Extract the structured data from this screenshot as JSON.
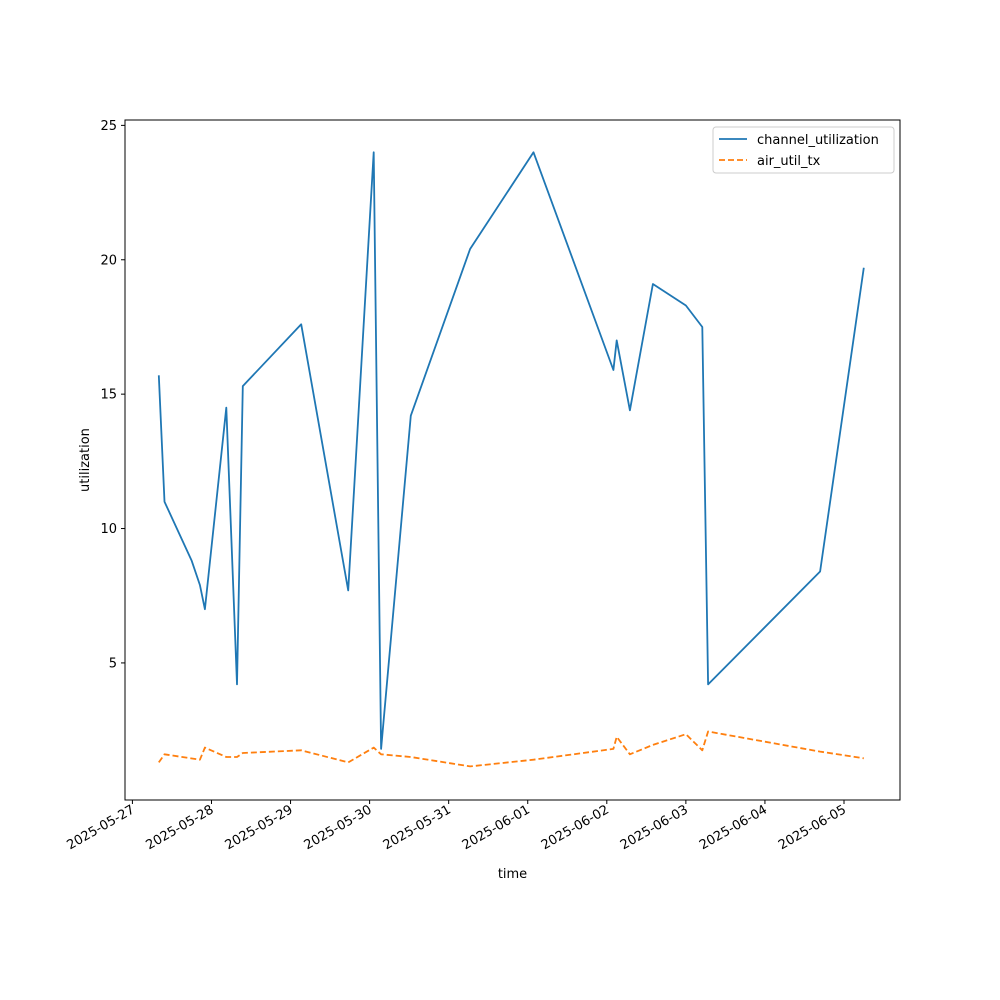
{
  "chart_data": {
    "type": "line",
    "title": "",
    "xlabel": "time",
    "ylabel": "utilization",
    "xlim": [
      "2025-05-26 21:45",
      "2025-06-05 17:00"
    ],
    "ylim": [
      -0.1,
      25.2
    ],
    "x_ticks": [
      "2025-05-27",
      "2025-05-28",
      "2025-05-29",
      "2025-05-30",
      "2025-05-31",
      "2025-06-01",
      "2025-06-02",
      "2025-06-03",
      "2025-06-04",
      "2025-06-05"
    ],
    "y_ticks": [
      5,
      10,
      15,
      20,
      25
    ],
    "grid": false,
    "legend_position": "top-right",
    "series": [
      {
        "name": "channel_utilization",
        "color": "#1f77b4",
        "style": "solid",
        "points": [
          [
            "2025-05-27 08:00",
            15.7
          ],
          [
            "2025-05-27 09:45",
            11.0
          ],
          [
            "2025-05-27 18:00",
            8.8
          ],
          [
            "2025-05-27 20:30",
            7.9
          ],
          [
            "2025-05-27 22:00",
            7.0
          ],
          [
            "2025-05-28 04:30",
            14.5
          ],
          [
            "2025-05-28 07:45",
            4.2
          ],
          [
            "2025-05-28 09:30",
            15.3
          ],
          [
            "2025-05-29 03:15",
            17.6
          ],
          [
            "2025-05-29 17:30",
            7.7
          ],
          [
            "2025-05-30 01:15",
            24.0
          ],
          [
            "2025-05-30 03:30",
            1.8
          ],
          [
            "2025-05-30 12:30",
            14.2
          ],
          [
            "2025-05-31 06:30",
            20.4
          ],
          [
            "2025-06-01 01:45",
            24.0
          ],
          [
            "2025-06-02 02:00",
            15.9
          ],
          [
            "2025-06-02 03:00",
            17.0
          ],
          [
            "2025-06-02 07:00",
            14.4
          ],
          [
            "2025-06-02 14:00",
            19.1
          ],
          [
            "2025-06-03 00:00",
            18.3
          ],
          [
            "2025-06-03 05:00",
            17.5
          ],
          [
            "2025-06-03 06:45",
            4.2
          ],
          [
            "2025-06-04 16:45",
            8.4
          ],
          [
            "2025-06-05 06:00",
            19.7
          ]
        ]
      },
      {
        "name": "air_util_tx",
        "color": "#ff7f0e",
        "style": "dashed",
        "points": [
          [
            "2025-05-27 08:00",
            1.3
          ],
          [
            "2025-05-27 09:45",
            1.6
          ],
          [
            "2025-05-27 20:30",
            1.4
          ],
          [
            "2025-05-27 22:00",
            1.85
          ],
          [
            "2025-05-28 04:30",
            1.5
          ],
          [
            "2025-05-28 07:45",
            1.5
          ],
          [
            "2025-05-28 09:30",
            1.65
          ],
          [
            "2025-05-29 03:15",
            1.75
          ],
          [
            "2025-05-29 17:30",
            1.3
          ],
          [
            "2025-05-30 01:15",
            1.85
          ],
          [
            "2025-05-30 03:30",
            1.6
          ],
          [
            "2025-05-30 12:30",
            1.5
          ],
          [
            "2025-05-31 06:30",
            1.15
          ],
          [
            "2025-06-01 01:45",
            1.4
          ],
          [
            "2025-06-02 02:00",
            1.8
          ],
          [
            "2025-06-02 03:00",
            2.25
          ],
          [
            "2025-06-02 07:00",
            1.6
          ],
          [
            "2025-06-02 14:00",
            1.95
          ],
          [
            "2025-06-03 00:00",
            2.35
          ],
          [
            "2025-06-03 05:00",
            1.75
          ],
          [
            "2025-06-03 06:45",
            2.45
          ],
          [
            "2025-06-04 16:45",
            1.7
          ],
          [
            "2025-06-05 06:00",
            1.45
          ]
        ]
      }
    ]
  }
}
